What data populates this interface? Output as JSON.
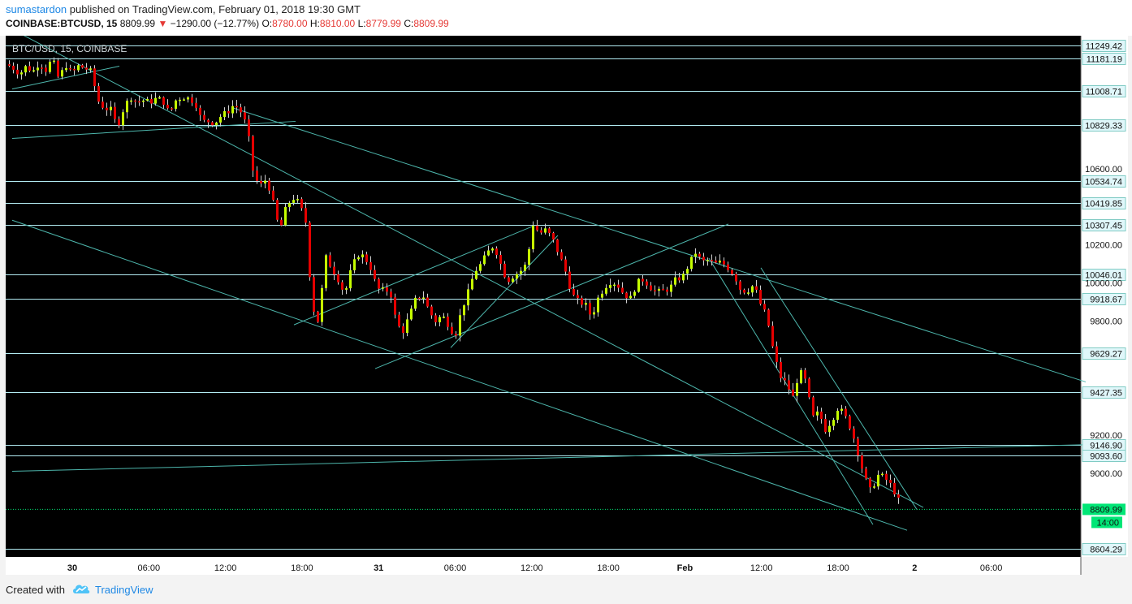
{
  "header": {
    "author": "sumastardon",
    "published_text": "published on TradingView.com, February 01, 2018 19:30 GMT",
    "symbol": "COINBASE:BTCUSD, 15",
    "last_price": "8809.99",
    "change": "−1290.00 (−12.77%)",
    "open_label": "O:",
    "open": "8780.00",
    "high_label": "H:",
    "high": "8810.00",
    "low_label": "L:",
    "low": "8779.99",
    "close_label": "C:",
    "close": "8809.99"
  },
  "footer": {
    "created_with": "Created with",
    "brand": "TradingView"
  },
  "chart_data": {
    "type": "candlestick",
    "title": "BTC/USD, 15, COINBASE",
    "ylim": [
      8560,
      11300
    ],
    "y_ticks": [
      "10600.00",
      "10200.00",
      "10000.00",
      "9800.00",
      "9200.00",
      "9000.00"
    ],
    "x_ticks": [
      "30",
      "06:00",
      "12:00",
      "18:00",
      "31",
      "06:00",
      "12:00",
      "18:00",
      "Feb",
      "12:00",
      "18:00",
      "2",
      "06:00"
    ],
    "horizontal_levels": [
      "11249.42",
      "11181.19",
      "11008.71",
      "10829.33",
      "10534.74",
      "10419.85",
      "10307.45",
      "10046.01",
      "9918.67",
      "9629.27",
      "9427.35",
      "9146.90",
      "9093.60",
      "8604.29"
    ],
    "current_price": "8809.99",
    "countdown": "14:00",
    "colors": {
      "up": "#c6ff00",
      "down": "#e50000",
      "trendline": "#4db6ac",
      "level": "#b2ebf2",
      "current": "#00e676",
      "background": "#000000"
    },
    "path_points": [
      [
        0,
        11150
      ],
      [
        8,
        11130
      ],
      [
        16,
        11100
      ],
      [
        24,
        11140
      ],
      [
        32,
        11110
      ],
      [
        40,
        11160
      ],
      [
        48,
        11120
      ],
      [
        56,
        11180
      ],
      [
        64,
        11070
      ],
      [
        72,
        11150
      ],
      [
        80,
        11100
      ],
      [
        88,
        11140
      ],
      [
        96,
        11130
      ],
      [
        104,
        11110
      ],
      [
        112,
        10960
      ],
      [
        120,
        10920
      ],
      [
        128,
        10910
      ],
      [
        136,
        10820
      ],
      [
        144,
        10920
      ],
      [
        152,
        10980
      ],
      [
        160,
        10950
      ],
      [
        168,
        10960
      ],
      [
        176,
        10950
      ],
      [
        184,
        10970
      ],
      [
        192,
        10960
      ],
      [
        200,
        10890
      ],
      [
        208,
        10960
      ],
      [
        216,
        10980
      ],
      [
        224,
        10970
      ],
      [
        232,
        10950
      ],
      [
        240,
        10850
      ],
      [
        248,
        10850
      ],
      [
        256,
        10840
      ],
      [
        264,
        10880
      ],
      [
        272,
        10900
      ],
      [
        280,
        10940
      ],
      [
        288,
        10900
      ],
      [
        296,
        10820
      ],
      [
        304,
        10560
      ],
      [
        312,
        10510
      ],
      [
        320,
        10550
      ],
      [
        328,
        10420
      ],
      [
        336,
        10270
      ],
      [
        344,
        10400
      ],
      [
        352,
        10450
      ],
      [
        360,
        10420
      ],
      [
        368,
        10320
      ],
      [
        376,
        9880
      ],
      [
        384,
        9790
      ],
      [
        392,
        10140
      ],
      [
        400,
        10080
      ],
      [
        408,
        10020
      ],
      [
        416,
        9940
      ],
      [
        424,
        10070
      ],
      [
        432,
        10150
      ],
      [
        440,
        10140
      ],
      [
        448,
        10080
      ],
      [
        456,
        9970
      ],
      [
        464,
        9960
      ],
      [
        472,
        9960
      ],
      [
        480,
        9780
      ],
      [
        488,
        9750
      ],
      [
        496,
        9830
      ],
      [
        504,
        9920
      ],
      [
        512,
        9940
      ],
      [
        520,
        9850
      ],
      [
        528,
        9800
      ],
      [
        536,
        9830
      ],
      [
        544,
        9780
      ],
      [
        552,
        9720
      ],
      [
        560,
        9860
      ],
      [
        568,
        9950
      ],
      [
        576,
        10060
      ],
      [
        584,
        10100
      ],
      [
        592,
        10160
      ],
      [
        600,
        10200
      ],
      [
        608,
        10100
      ],
      [
        616,
        10010
      ],
      [
        624,
        10040
      ],
      [
        632,
        10060
      ],
      [
        640,
        10100
      ],
      [
        648,
        10310
      ],
      [
        656,
        10260
      ],
      [
        664,
        10280
      ],
      [
        672,
        10230
      ],
      [
        680,
        10150
      ],
      [
        688,
        10060
      ],
      [
        696,
        9940
      ],
      [
        704,
        9900
      ],
      [
        712,
        9890
      ],
      [
        720,
        9820
      ],
      [
        728,
        9920
      ],
      [
        736,
        9980
      ],
      [
        744,
        10010
      ],
      [
        752,
        9990
      ],
      [
        760,
        9940
      ],
      [
        768,
        9920
      ],
      [
        776,
        10000
      ],
      [
        784,
        10020
      ],
      [
        792,
        9980
      ],
      [
        800,
        9950
      ],
      [
        808,
        9960
      ],
      [
        816,
        9970
      ],
      [
        824,
        10020
      ],
      [
        832,
        10030
      ],
      [
        840,
        10100
      ],
      [
        848,
        10160
      ],
      [
        856,
        10110
      ],
      [
        864,
        10120
      ],
      [
        872,
        10100
      ],
      [
        880,
        10110
      ],
      [
        888,
        10080
      ],
      [
        896,
        10040
      ],
      [
        904,
        9960
      ],
      [
        912,
        9960
      ],
      [
        920,
        9990
      ],
      [
        928,
        9890
      ],
      [
        936,
        9820
      ],
      [
        944,
        9640
      ],
      [
        952,
        9510
      ],
      [
        960,
        9470
      ],
      [
        968,
        9400
      ],
      [
        976,
        9540
      ],
      [
        984,
        9480
      ],
      [
        992,
        9290
      ],
      [
        1000,
        9320
      ],
      [
        1008,
        9230
      ],
      [
        1016,
        9280
      ],
      [
        1024,
        9350
      ],
      [
        1032,
        9300
      ],
      [
        1040,
        9230
      ],
      [
        1048,
        9110
      ],
      [
        1056,
        8980
      ],
      [
        1064,
        8900
      ],
      [
        1072,
        8990
      ],
      [
        1080,
        8980
      ],
      [
        1088,
        8940
      ],
      [
        1096,
        8880
      ],
      [
        1102,
        8810
      ]
    ],
    "trend_lines": [
      [
        [
          14,
          11320
        ],
        [
          1130,
          8820
        ]
      ],
      [
        [
          8,
          11020
        ],
        [
          140,
          11140
        ]
      ],
      [
        [
          8,
          10760
        ],
        [
          357,
          10850
        ]
      ],
      [
        [
          8,
          10330
        ],
        [
          1110,
          8700
        ]
      ],
      [
        [
          355,
          9780
        ],
        [
          650,
          10300
        ]
      ],
      [
        [
          455,
          9550
        ],
        [
          890,
          10310
        ]
      ],
      [
        [
          548,
          9660
        ],
        [
          680,
          10250
        ]
      ],
      [
        [
          280,
          10920
        ],
        [
          1330,
          9480
        ]
      ],
      [
        [
          866,
          10130
        ],
        [
          1068,
          8730
        ]
      ],
      [
        [
          930,
          10080
        ],
        [
          1122,
          8810
        ]
      ],
      [
        [
          8,
          9010
        ],
        [
          1330,
          9150
        ]
      ]
    ]
  }
}
